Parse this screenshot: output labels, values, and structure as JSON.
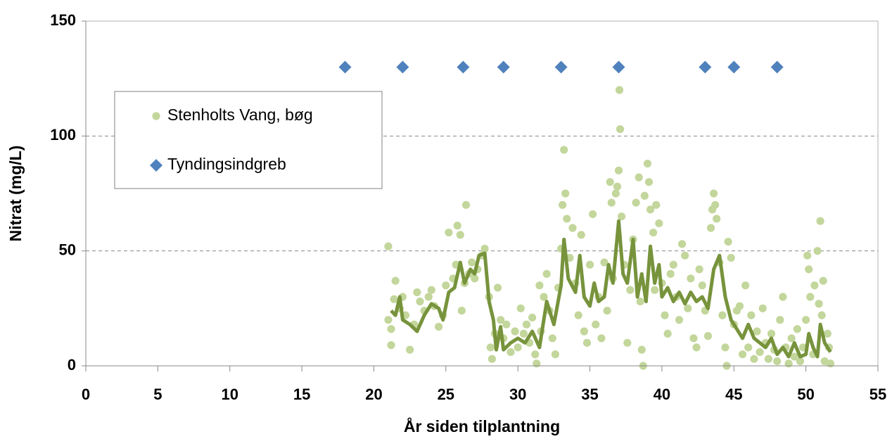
{
  "chart_data": {
    "type": "scatter",
    "xlabel": "År siden tilplantning",
    "ylabel": "Nitrat (mg/L)",
    "xlim": [
      0,
      55
    ],
    "xticks": [
      0,
      5,
      10,
      15,
      20,
      25,
      30,
      35,
      40,
      45,
      50,
      55
    ],
    "ylim": [
      0,
      150
    ],
    "yticks": [
      0,
      50,
      100,
      150
    ],
    "grid": true,
    "series": [
      {
        "name": "Stenholts Vang, bøg",
        "type": "scatter",
        "marker": "circle",
        "color": "#c3d69b",
        "x": [
          21,
          21,
          21.2,
          21.2,
          21.4,
          21.5,
          21.8,
          22,
          22.2,
          22.5,
          22.8,
          23,
          23.2,
          23.5,
          23.8,
          24,
          24.2,
          24.5,
          24.8,
          25,
          25.2,
          25.5,
          25.7,
          25.8,
          26,
          26.1,
          26.3,
          26.4,
          26.6,
          26.8,
          27,
          27.2,
          27.5,
          27.7,
          28,
          28.1,
          28.2,
          28.4,
          28.6,
          28.8,
          29,
          29.2,
          29.5,
          29.8,
          30,
          30.2,
          30.4,
          30.6,
          30.8,
          31,
          31.2,
          31.3,
          31.5,
          31.6,
          31.8,
          32,
          32.2,
          32.4,
          32.6,
          32.8,
          33,
          33.1,
          33.2,
          33.3,
          33.4,
          33.6,
          33.8,
          34,
          34.2,
          34.4,
          34.6,
          34.8,
          35,
          35.2,
          35.4,
          35.6,
          35.8,
          36,
          36.2,
          36.4,
          36.5,
          36.6,
          36.8,
          36.9,
          37,
          37.05,
          37.1,
          37.2,
          37.4,
          37.6,
          37.8,
          38,
          38.2,
          38.4,
          38.5,
          38.6,
          38.7,
          38.8,
          39,
          39.1,
          39.2,
          39.4,
          39.5,
          39.6,
          39.8,
          40,
          40.2,
          40.4,
          40.6,
          40.8,
          41,
          41.2,
          41.4,
          41.6,
          41.8,
          42,
          42.2,
          42.4,
          42.6,
          42.8,
          43,
          43.2,
          43.4,
          43.5,
          43.6,
          43.7,
          43.8,
          44,
          44.2,
          44.4,
          44.5,
          44.6,
          44.8,
          45,
          45.2,
          45.4,
          45.6,
          45.8,
          46,
          46.2,
          46.4,
          46.6,
          46.8,
          47,
          47.2,
          47.4,
          47.6,
          47.8,
          48,
          48.2,
          48.4,
          48.6,
          48.8,
          49,
          49.2,
          49.4,
          49.6,
          49.8,
          50,
          50.1,
          50.2,
          50.3,
          50.5,
          50.6,
          50.8,
          50.9,
          51,
          51.1,
          51.2,
          51.3,
          51.5,
          51.6,
          51.7
        ],
        "values": [
          52,
          20,
          16,
          9,
          29,
          37,
          25,
          30,
          22,
          7,
          18,
          32,
          28,
          24,
          30,
          33,
          26,
          17,
          22,
          35,
          58,
          38,
          44,
          61,
          57,
          24,
          36,
          70,
          40,
          45,
          38,
          42,
          48,
          51,
          30,
          8,
          3,
          14,
          34,
          20,
          12,
          18,
          6,
          15,
          8,
          25,
          14,
          18,
          10,
          21,
          5,
          1,
          35,
          15,
          30,
          40,
          24,
          12,
          5,
          34,
          51,
          70,
          94,
          75,
          64,
          47,
          60,
          36,
          22,
          57,
          15,
          10,
          44,
          66,
          18,
          30,
          12,
          45,
          24,
          80,
          71,
          38,
          75,
          78,
          85,
          120,
          103,
          65,
          44,
          10,
          33,
          55,
          71,
          82,
          28,
          7,
          0,
          74,
          88,
          80,
          68,
          58,
          33,
          70,
          62,
          36,
          22,
          14,
          40,
          44,
          30,
          20,
          53,
          48,
          25,
          38,
          12,
          8,
          42,
          35,
          24,
          13,
          60,
          68,
          75,
          70,
          64,
          45,
          22,
          8,
          0,
          54,
          47,
          18,
          24,
          26,
          5,
          35,
          8,
          22,
          3,
          15,
          6,
          25,
          10,
          3,
          14,
          7,
          2,
          20,
          30,
          8,
          1,
          12,
          4,
          16,
          2,
          8,
          20,
          48,
          42,
          30,
          5,
          35,
          50,
          27,
          63,
          22,
          37,
          2,
          14,
          8,
          1
        ]
      },
      {
        "type": "line",
        "color": "#77933c",
        "x": [
          21.2,
          21.5,
          21.8,
          22,
          22.5,
          23,
          23.5,
          24,
          24.5,
          24.8,
          25.2,
          25.6,
          26,
          26.3,
          26.7,
          27,
          27.3,
          27.7,
          28,
          28.3,
          28.5,
          28.8,
          29,
          29.5,
          30,
          30.5,
          31,
          31.5,
          32,
          32.5,
          33,
          33.2,
          33.5,
          34,
          34.3,
          34.6,
          35,
          35.3,
          35.6,
          36,
          36.3,
          36.6,
          37,
          37.3,
          37.6,
          38,
          38.3,
          38.6,
          38.9,
          39.2,
          39.5,
          39.8,
          40,
          40.4,
          40.8,
          41.2,
          41.6,
          42,
          42.4,
          42.8,
          43.2,
          43.6,
          44,
          44.4,
          44.8,
          45.2,
          45.6,
          46,
          46.4,
          46.8,
          47.2,
          47.6,
          48,
          48.4,
          48.8,
          49.2,
          49.6,
          50,
          50.2,
          50.5,
          50.8,
          51,
          51.3,
          51.7
        ],
        "values": [
          24,
          22,
          30,
          20,
          18,
          15,
          22,
          27,
          25,
          20,
          32,
          34,
          45,
          36,
          42,
          40,
          48,
          49,
          28,
          20,
          7,
          17,
          7,
          10,
          12,
          10,
          15,
          8,
          28,
          18,
          35,
          55,
          38,
          32,
          48,
          30,
          26,
          36,
          28,
          30,
          44,
          36,
          63,
          40,
          36,
          55,
          30,
          40,
          28,
          52,
          36,
          44,
          30,
          34,
          28,
          32,
          27,
          32,
          28,
          30,
          25,
          42,
          48,
          30,
          20,
          16,
          12,
          18,
          12,
          10,
          8,
          12,
          5,
          8,
          4,
          10,
          4,
          5,
          14,
          8,
          4,
          18,
          10,
          6
        ]
      },
      {
        "name": "Tyndingsindgreb",
        "type": "scatter",
        "marker": "diamond",
        "color": "#4f81bd",
        "x": [
          18,
          22,
          26.2,
          29,
          33,
          37,
          43,
          45,
          48
        ],
        "values": [
          130,
          130,
          130,
          130,
          130,
          130,
          130,
          130,
          130
        ]
      }
    ]
  }
}
